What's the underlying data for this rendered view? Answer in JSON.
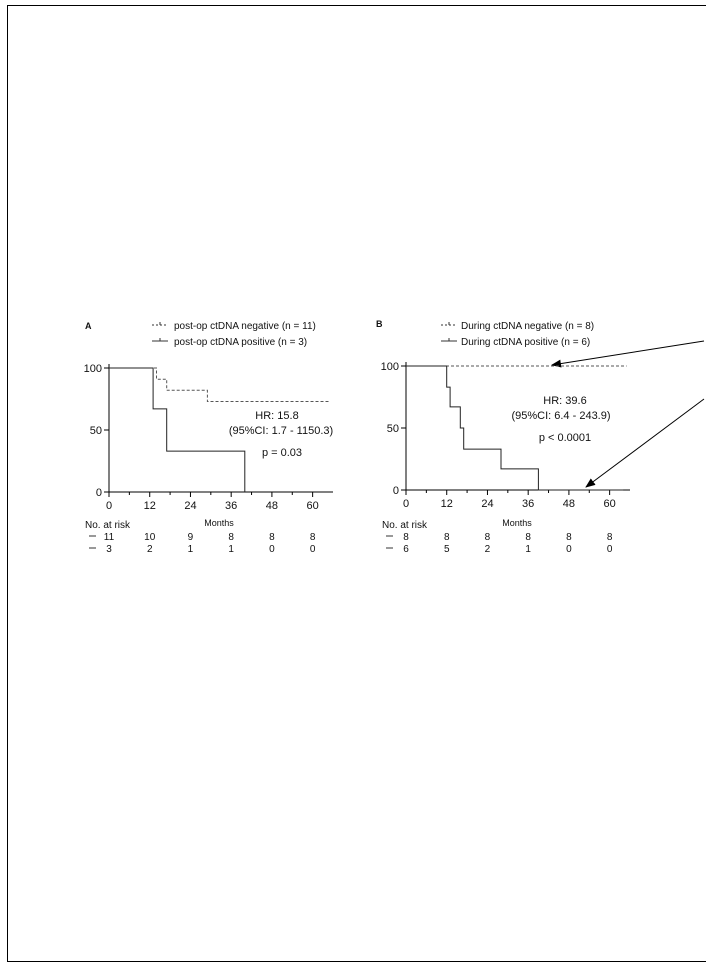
{
  "chart_data": [
    {
      "type": "line",
      "panel_label": "A",
      "xlabel": "Months",
      "ylabel": "",
      "xlim": [
        0,
        66
      ],
      "ylim": [
        0,
        100
      ],
      "x_ticks": [
        "0",
        "12",
        "24",
        "36",
        "48",
        "60"
      ],
      "y_ticks": [
        "0",
        "50",
        "100"
      ],
      "legend_position": "top-right",
      "series": [
        {
          "name": "post-op ctDNA negative (n = 11)",
          "style": "dashed",
          "points": [
            [
              0,
              100
            ],
            [
              14,
              100
            ],
            [
              14,
              91
            ],
            [
              17,
              91
            ],
            [
              17,
              82
            ],
            [
              29,
              82
            ],
            [
              29,
              73
            ],
            [
              65,
              73
            ]
          ]
        },
        {
          "name": "post-op ctDNA positive (n = 3)",
          "style": "solid",
          "points": [
            [
              0,
              100
            ],
            [
              13,
              100
            ],
            [
              13,
              67
            ],
            [
              17,
              67
            ],
            [
              17,
              33
            ],
            [
              40,
              33
            ],
            [
              40,
              0
            ]
          ]
        }
      ],
      "annotations": [
        "HR: 15.8",
        "(95%CI: 1.7 - 1150.3)",
        "p = 0.03"
      ],
      "risk_table": {
        "title": "No. at risk",
        "rows": [
          {
            "style": "dashed",
            "values": [
              "11",
              "10",
              "9",
              "8",
              "8",
              "8"
            ]
          },
          {
            "style": "solid",
            "values": [
              "3",
              "2",
              "1",
              "1",
              "0",
              "0"
            ]
          }
        ]
      }
    },
    {
      "type": "line",
      "panel_label": "B",
      "xlabel": "Months",
      "ylabel": "",
      "xlim": [
        0,
        66
      ],
      "ylim": [
        0,
        100
      ],
      "x_ticks": [
        "0",
        "12",
        "24",
        "36",
        "48",
        "60"
      ],
      "y_ticks": [
        "0",
        "50",
        "100"
      ],
      "legend_position": "top-right",
      "series": [
        {
          "name": "During ctDNA negative (n = 8)",
          "style": "dashed",
          "points": [
            [
              0,
              100
            ],
            [
              65,
              100
            ]
          ]
        },
        {
          "name": "During ctDNA positive (n = 6)",
          "style": "solid",
          "points": [
            [
              0,
              100
            ],
            [
              12,
              100
            ],
            [
              12,
              83
            ],
            [
              13,
              83
            ],
            [
              13,
              67
            ],
            [
              16,
              67
            ],
            [
              16,
              50
            ],
            [
              17,
              50
            ],
            [
              17,
              33
            ],
            [
              28,
              33
            ],
            [
              28,
              17
            ],
            [
              39,
              17
            ],
            [
              39,
              0
            ],
            [
              64,
              0
            ]
          ]
        }
      ],
      "annotations": [
        "HR: 39.6",
        "(95%CI: 6.4 - 243.9)",
        "p < 0.0001"
      ],
      "risk_table": {
        "title": "No. at risk",
        "rows": [
          {
            "style": "dashed",
            "values": [
              "8",
              "8",
              "8",
              "8",
              "8",
              "8"
            ]
          },
          {
            "style": "solid",
            "values": [
              "6",
              "5",
              "2",
              "1",
              "0",
              "0"
            ]
          }
        ]
      }
    }
  ]
}
